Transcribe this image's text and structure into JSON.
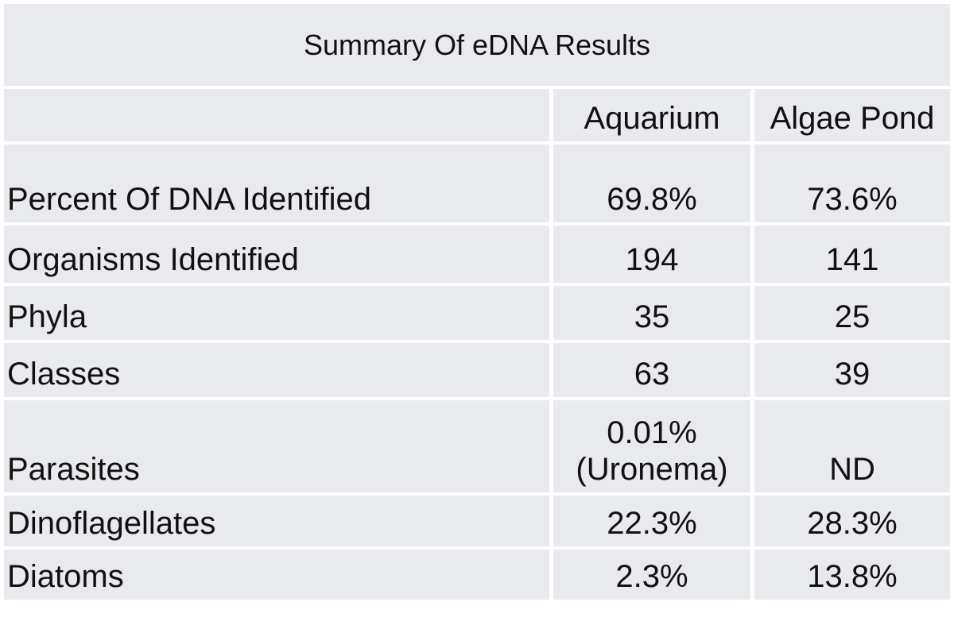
{
  "title": "Summary Of eDNA Results",
  "table": {
    "columns": [
      "Aquarium",
      "Algae Pond"
    ],
    "rows": [
      {
        "label": "Percent Of DNA Identified",
        "values": [
          "69.8%",
          "73.6%"
        ]
      },
      {
        "label": "Organisms Identified",
        "values": [
          "194",
          "141"
        ]
      },
      {
        "label": "Phyla",
        "values": [
          "35",
          "25"
        ]
      },
      {
        "label": "Classes",
        "values": [
          "63",
          "39"
        ]
      },
      {
        "label": "Parasites",
        "values": [
          "0.01%\n(Uronema)",
          "ND"
        ]
      },
      {
        "label": "Dinoflagellates",
        "values": [
          "22.3%",
          "28.3%"
        ]
      },
      {
        "label": "Diatoms",
        "values": [
          "2.3%",
          "13.8%"
        ]
      }
    ]
  }
}
